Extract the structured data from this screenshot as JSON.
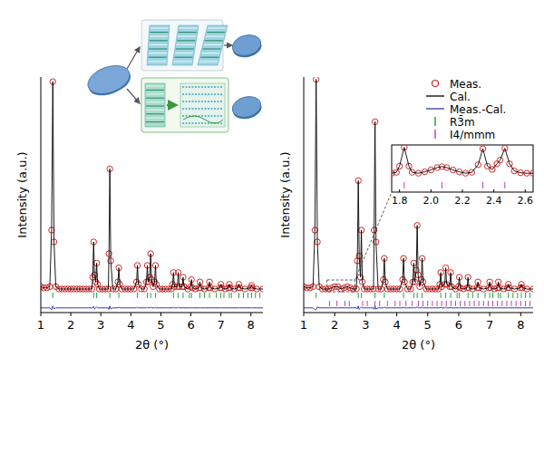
{
  "chart_data": [
    {
      "type": "line",
      "xlabel": "2θ (°)",
      "ylabel": "Intensity (a.u.)",
      "x": [
        1.0,
        1.1,
        1.2,
        1.3,
        1.36,
        1.4,
        1.44,
        1.5,
        1.6,
        1.7,
        1.8,
        1.9,
        2.0,
        2.1,
        2.2,
        2.3,
        2.4,
        2.5,
        2.6,
        2.7,
        2.73,
        2.76,
        2.79,
        2.83,
        2.86,
        2.89,
        2.95,
        3.05,
        3.15,
        3.25,
        3.27,
        3.3,
        3.33,
        3.4,
        3.5,
        3.57,
        3.6,
        3.63,
        3.7,
        3.8,
        3.9,
        4.0,
        4.1,
        4.19,
        4.22,
        4.25,
        4.35,
        4.45,
        4.52,
        4.55,
        4.58,
        4.63,
        4.66,
        4.69,
        4.74,
        4.79,
        4.82,
        4.85,
        4.95,
        5.05,
        5.15,
        5.25,
        5.35,
        5.39,
        5.42,
        5.45,
        5.55,
        5.58,
        5.61,
        5.71,
        5.74,
        5.77,
        5.9,
        5.99,
        6.02,
        6.05,
        6.15,
        6.27,
        6.3,
        6.33,
        6.45,
        6.59,
        6.62,
        6.65,
        6.8,
        6.97,
        7.0,
        7.03,
        7.15,
        7.25,
        7.28,
        7.31,
        7.45,
        7.57,
        7.6,
        7.63,
        7.8,
        7.99,
        8.02,
        8.05,
        8.2,
        8.4
      ],
      "series": [
        {
          "type": "scatter",
          "marker": "circle",
          "color": "#d42a2a",
          "values": [
            11,
            10.5,
            10.5,
            11,
            35,
            98,
            30,
            11,
            10,
            10,
            10,
            10,
            10,
            10,
            10,
            10,
            10,
            10,
            10,
            10,
            15,
            30,
            16,
            13,
            21,
            12,
            10,
            10,
            10,
            10,
            25,
            61,
            22,
            10,
            10,
            13,
            19,
            12,
            10,
            10,
            10,
            10,
            10,
            13,
            20,
            12,
            10,
            10,
            13,
            20,
            13,
            15,
            25,
            14,
            11,
            13,
            20,
            12,
            10,
            10,
            10,
            10,
            10,
            12,
            17,
            11,
            11,
            17,
            11,
            11,
            15,
            11,
            10,
            11,
            14,
            10.5,
            10,
            10.5,
            13,
            10.5,
            10,
            10.5,
            13,
            10.5,
            10,
            10.5,
            12,
            10.5,
            10,
            10.5,
            12,
            10.5,
            10,
            10.5,
            12,
            10.5,
            10,
            10.5,
            11.5,
            10.5,
            10,
            10
          ]
        },
        {
          "type": "line",
          "color": "#000000",
          "values": [
            11,
            10.5,
            10.5,
            11,
            35,
            98,
            30,
            11,
            10,
            10,
            10,
            10,
            10,
            10,
            10,
            10,
            10,
            10,
            10,
            10,
            15,
            30,
            16,
            13,
            21,
            12,
            10,
            10,
            10,
            10,
            25,
            61,
            22,
            10,
            10,
            13,
            19,
            12,
            10,
            10,
            10,
            10,
            10,
            13,
            20,
            12,
            10,
            10,
            13,
            20,
            13,
            15,
            25,
            14,
            11,
            13,
            20,
            12,
            10,
            10,
            10,
            10,
            10,
            12,
            17,
            11,
            11,
            17,
            11,
            11,
            15,
            11,
            10,
            11,
            14,
            10.5,
            10,
            10.5,
            13,
            10.5,
            10,
            10.5,
            13,
            10.5,
            10,
            10.5,
            12,
            10.5,
            10,
            10.5,
            12,
            10.5,
            10,
            10.5,
            12,
            10.5,
            10,
            10.5,
            11.5,
            10.5,
            10,
            10
          ]
        },
        {
          "type": "line",
          "color": "#2b3bb0",
          "values": [
            2,
            2,
            2,
            2,
            1.2,
            2.8,
            1.6,
            2,
            2,
            2,
            2,
            2,
            2,
            2,
            2,
            2,
            2,
            2,
            2,
            2,
            2,
            2.6,
            1.6,
            2,
            2.3,
            2,
            2,
            2,
            2,
            2,
            1.4,
            2.8,
            1.6,
            2,
            2,
            2,
            2.3,
            2,
            2,
            2,
            2,
            2,
            2,
            2,
            2.3,
            2,
            2,
            2,
            2,
            2.2,
            2,
            2,
            2.4,
            2,
            2,
            2,
            2.2,
            2,
            2,
            2,
            2,
            2,
            2,
            2,
            2.2,
            2,
            2,
            2.2,
            2,
            2,
            2.1,
            2,
            2,
            2,
            2,
            2,
            2,
            2,
            2,
            2,
            2,
            2,
            2,
            2,
            2,
            2,
            2,
            2,
            2,
            2,
            2,
            2,
            2,
            2,
            2,
            2,
            2,
            2,
            2,
            2,
            2,
            2
          ]
        }
      ],
      "reflections": [
        {
          "color": "#2e9e3e",
          "positions": [
            1.4,
            2.76,
            2.86,
            3.3,
            3.6,
            4.22,
            4.55,
            4.66,
            4.82,
            5.42,
            5.58,
            5.74,
            5.95,
            6.02,
            6.3,
            6.45,
            6.62,
            6.85,
            7.0,
            7.1,
            7.28,
            7.35,
            7.6,
            7.75,
            7.9,
            8.02,
            8.15,
            8.3
          ]
        }
      ],
      "xlim": [
        1,
        8.4
      ],
      "xticks": [
        1,
        2,
        3,
        4,
        5,
        6,
        7,
        8
      ],
      "ylim": [
        0,
        100
      ],
      "tick_labels": "x"
    },
    {
      "type": "line",
      "xlabel": "2θ (°)",
      "ylabel": "Intensity (a.u.)",
      "x": [
        1.0,
        1.1,
        1.2,
        1.3,
        1.36,
        1.4,
        1.44,
        1.5,
        1.6,
        1.7,
        1.8,
        1.9,
        2.0,
        2.1,
        2.2,
        2.3,
        2.4,
        2.5,
        2.6,
        2.7,
        2.73,
        2.76,
        2.79,
        2.83,
        2.86,
        2.89,
        2.95,
        3.05,
        3.15,
        3.25,
        3.27,
        3.3,
        3.33,
        3.4,
        3.5,
        3.57,
        3.6,
        3.63,
        3.7,
        3.8,
        3.9,
        4.0,
        4.1,
        4.19,
        4.22,
        4.25,
        4.35,
        4.45,
        4.52,
        4.55,
        4.58,
        4.63,
        4.66,
        4.69,
        4.74,
        4.79,
        4.82,
        4.85,
        4.95,
        5.05,
        5.15,
        5.25,
        5.35,
        5.39,
        5.42,
        5.45,
        5.55,
        5.58,
        5.61,
        5.71,
        5.74,
        5.77,
        5.9,
        5.99,
        6.02,
        6.05,
        6.15,
        6.27,
        6.3,
        6.33,
        6.45,
        6.59,
        6.62,
        6.65,
        6.8,
        6.97,
        7.0,
        7.03,
        7.15,
        7.25,
        7.28,
        7.31,
        7.45,
        7.57,
        7.6,
        7.63,
        7.8,
        7.99,
        8.02,
        8.05,
        8.2,
        8.4
      ],
      "series": [
        {
          "name": "Meas.",
          "type": "scatter",
          "marker": "circle",
          "color": "#d42a2a",
          "values": [
            11,
            10.5,
            10.5,
            11,
            35,
            99,
            30,
            11,
            10,
            10,
            10,
            10.5,
            11,
            11,
            10,
            10.5,
            11,
            10.5,
            10,
            10,
            22,
            56,
            24,
            15,
            35,
            13,
            10,
            10,
            10,
            10,
            35,
            81,
            30,
            10,
            10,
            14,
            23,
            13,
            10,
            10,
            10,
            10,
            10,
            14,
            23,
            13,
            10,
            10,
            13,
            21,
            13,
            18,
            37,
            16,
            11,
            14,
            23,
            13,
            10,
            10,
            10,
            10,
            10,
            12,
            17,
            11,
            12,
            19,
            12,
            11,
            17,
            11,
            10,
            11,
            15,
            10.5,
            10,
            10.5,
            15,
            10.5,
            10,
            10.5,
            13,
            10.5,
            10,
            10.5,
            13,
            10.5,
            10,
            10.5,
            13,
            10.5,
            10,
            10.5,
            12,
            10.5,
            10,
            10.5,
            12,
            10.5,
            10,
            10
          ]
        },
        {
          "name": "Cal.",
          "type": "line",
          "color": "#000000",
          "values": [
            11,
            10.5,
            10.5,
            11,
            35,
            99,
            30,
            11,
            10,
            10,
            10,
            10.5,
            11,
            11,
            10,
            10.5,
            11,
            10.5,
            10,
            10,
            22,
            56,
            24,
            15,
            35,
            13,
            10,
            10,
            10,
            10,
            35,
            81,
            30,
            10,
            10,
            14,
            23,
            13,
            10,
            10,
            10,
            10,
            10,
            14,
            23,
            13,
            10,
            10,
            13,
            21,
            13,
            18,
            37,
            16,
            11,
            14,
            23,
            13,
            10,
            10,
            10,
            10,
            10,
            12,
            17,
            11,
            12,
            19,
            12,
            11,
            17,
            11,
            10,
            11,
            15,
            10.5,
            10,
            10.5,
            15,
            10.5,
            10,
            10.5,
            13,
            10.5,
            10,
            10.5,
            13,
            10.5,
            10,
            10.5,
            13,
            10.5,
            10,
            10.5,
            12,
            10.5,
            10,
            10.5,
            12,
            10.5,
            10,
            10
          ]
        },
        {
          "name": "Meas.-Cal.",
          "type": "line",
          "color": "#2b3bb0",
          "values": [
            2,
            2,
            2,
            2,
            1.2,
            1.2,
            2.4,
            2,
            2,
            2,
            2,
            2,
            2,
            2,
            2,
            2,
            2,
            2,
            2,
            2,
            1.6,
            2.8,
            1.4,
            2,
            2.4,
            2,
            2,
            2,
            2,
            2,
            1.4,
            2.8,
            1.5,
            2,
            2,
            2,
            2.4,
            2,
            2,
            2,
            2,
            2,
            2,
            2,
            2.3,
            2,
            2,
            2,
            2,
            2.2,
            2,
            2,
            2.5,
            2,
            2,
            2,
            2.3,
            2,
            2,
            2,
            2,
            2,
            2,
            2,
            2.2,
            2,
            2,
            2.2,
            2,
            2,
            2.1,
            2,
            2,
            2,
            2,
            2,
            2,
            2,
            2,
            2,
            2,
            2,
            2,
            2,
            2,
            2,
            2,
            2,
            2,
            2,
            2,
            2,
            2,
            2,
            2,
            2,
            2,
            2,
            2,
            2,
            2,
            2
          ]
        }
      ],
      "reflections": [
        {
          "name": "R3̄m",
          "color": "#2e9e3e",
          "positions": [
            1.4,
            2.76,
            2.86,
            3.3,
            3.6,
            4.22,
            4.55,
            4.66,
            4.82,
            5.42,
            5.58,
            5.74,
            5.95,
            6.02,
            6.3,
            6.45,
            6.62,
            6.85,
            7.0,
            7.1,
            7.28,
            7.35,
            7.6,
            7.75,
            7.9,
            8.02,
            8.15,
            8.3
          ]
        },
        {
          "name": "I4/mmm",
          "color": "#c040b0",
          "positions": [
            1.83,
            2.07,
            2.33,
            2.47,
            2.9,
            3.05,
            3.3,
            3.45,
            3.7,
            3.95,
            4.1,
            4.3,
            4.5,
            4.7,
            4.85,
            5.0,
            5.15,
            5.3,
            5.45,
            5.6,
            5.75,
            5.9,
            6.05,
            6.2,
            6.35,
            6.5,
            6.65,
            6.8,
            6.95,
            7.1,
            7.25,
            7.4,
            7.55,
            7.7,
            7.85,
            8.0,
            8.15,
            8.3
          ]
        }
      ],
      "xlim": [
        1,
        8.4
      ],
      "xticks": [
        1,
        2,
        3,
        4,
        5,
        6,
        7,
        8
      ],
      "ylim": [
        0,
        100
      ],
      "tick_labels": "x",
      "legend": "upper right"
    },
    {
      "type": "line",
      "x": [
        1.75,
        1.78,
        1.8,
        1.83,
        1.86,
        1.88,
        1.92,
        1.96,
        2.0,
        2.04,
        2.07,
        2.1,
        2.14,
        2.18,
        2.22,
        2.26,
        2.3,
        2.33,
        2.36,
        2.39,
        2.42,
        2.44,
        2.47,
        2.5,
        2.53,
        2.57,
        2.61,
        2.65
      ],
      "series": [
        {
          "type": "scatter",
          "marker": "circle",
          "color": "#d42a2a",
          "values": [
            40,
            42,
            55,
            95,
            55,
            42,
            40,
            43,
            47,
            52,
            54,
            52,
            47,
            43,
            40,
            42,
            58,
            92,
            55,
            48,
            60,
            68,
            93,
            60,
            45,
            41,
            40,
            40
          ]
        },
        {
          "type": "line",
          "color": "#000000",
          "values": [
            40,
            42,
            55,
            95,
            55,
            42,
            40,
            43,
            47,
            52,
            54,
            52,
            47,
            43,
            40,
            42,
            58,
            92,
            55,
            48,
            60,
            68,
            93,
            60,
            45,
            41,
            40,
            40
          ]
        }
      ],
      "reflections": [
        {
          "color": "#c040b0",
          "positions": [
            1.83,
            2.07,
            2.33,
            2.47
          ]
        }
      ],
      "xlim": [
        1.75,
        2.65
      ],
      "xticks": [
        1.8,
        {
          "value": 2,
          "label": "2.0"
        },
        2.2,
        2.4,
        2.6
      ],
      "ylim": [
        0,
        100
      ],
      "tick_labels": "x"
    }
  ]
}
